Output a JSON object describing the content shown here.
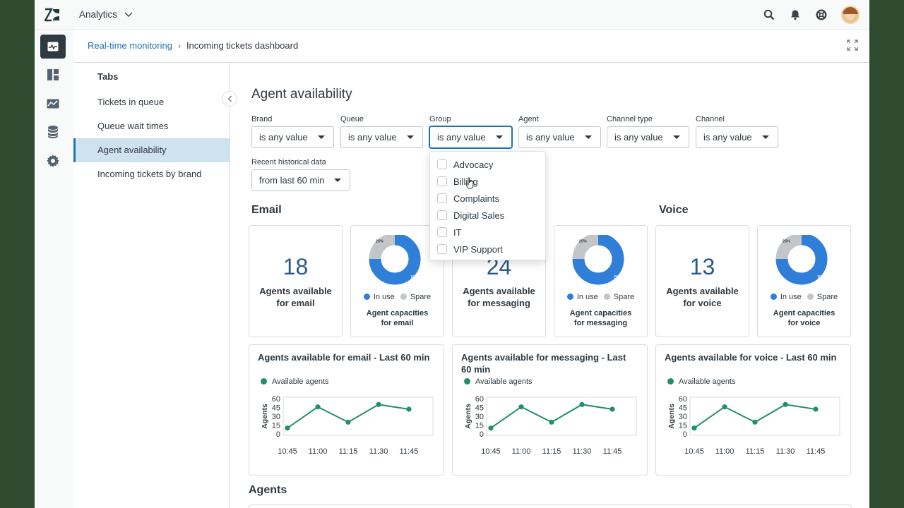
{
  "app": {
    "product_label": "Analytics"
  },
  "breadcrumb": {
    "parent": "Real-time monitoring",
    "current": "Incoming tickets dashboard"
  },
  "tabs": {
    "title": "Tabs",
    "items": [
      "Tickets in queue",
      "Queue wait times",
      "Agent availability",
      "Incoming tickets by brand"
    ],
    "active": "Agent availability"
  },
  "page": {
    "title": "Agent availability"
  },
  "filters": [
    {
      "label": "Brand",
      "value": "is any value"
    },
    {
      "label": "Queue",
      "value": "is any value"
    },
    {
      "label": "Group",
      "value": "is any value"
    },
    {
      "label": "Agent",
      "value": "is any value"
    },
    {
      "label": "Channel type",
      "value": "is any value"
    },
    {
      "label": "Channel",
      "value": "is any value"
    }
  ],
  "historical": {
    "label": "Recent historical data",
    "value": "from last 60 min"
  },
  "group_dropdown": {
    "options": [
      "Advocacy",
      "Billing",
      "Complaints",
      "Digital Sales",
      "IT",
      "VIP Support"
    ]
  },
  "sections": {
    "email": "Email",
    "voice": "Voice",
    "agents": "Agents"
  },
  "kpis": [
    {
      "value": "18",
      "label_line1": "Agents available",
      "label_line2": "for email"
    },
    {
      "value": "24",
      "label_line1": "Agents available",
      "label_line2": "for messaging"
    },
    {
      "value": "13",
      "label_line1": "Agents available",
      "label_line2": "for voice"
    }
  ],
  "donuts": [
    {
      "in_use_pct": "75%",
      "spare_pct": "25%",
      "cap_line1": "Agent capacities",
      "cap_line2": "for email"
    },
    {
      "in_use_pct": "75%",
      "spare_pct": "25%",
      "cap_line1": "Agent capacities",
      "cap_line2": "for messaging"
    },
    {
      "in_use_pct": "75%",
      "spare_pct": "25%",
      "cap_line1": "Agent capacities",
      "cap_line2": "for voice"
    }
  ],
  "donut_legend": {
    "in_use": "In use",
    "spare": "Spare"
  },
  "colors": {
    "in_use": "#2f7fd8",
    "spare": "#c2c6c9",
    "series": "#228f67",
    "accent": "#1f73b7"
  },
  "line_charts": {
    "legend": "Available agents",
    "ylabel": "Agents",
    "titles": [
      "Agents available for email - Last 60 min",
      "Agents available for messaging - Last 60 min",
      "Agents available for voice - Last 60 min"
    ]
  },
  "chart_data": [
    {
      "type": "pie",
      "categories": [
        "In use",
        "Spare"
      ],
      "values": [
        75,
        25
      ]
    },
    {
      "type": "pie",
      "categories": [
        "In use",
        "Spare"
      ],
      "values": [
        75,
        25
      ]
    },
    {
      "type": "pie",
      "categories": [
        "In use",
        "Spare"
      ],
      "values": [
        75,
        25
      ]
    },
    {
      "type": "line",
      "title": "Agents available for email - Last 60 min",
      "ylabel": "Agents",
      "x": [
        "10:45",
        "11:00",
        "11:15",
        "11:30",
        "11:45"
      ],
      "series": [
        {
          "name": "Available agents",
          "values": [
            10,
            46,
            20,
            50,
            42
          ]
        }
      ],
      "yticks": [
        0,
        15,
        30,
        45,
        60
      ],
      "ylim": [
        0,
        60
      ],
      "grid": false,
      "legend": "top-left"
    },
    {
      "type": "line",
      "title": "Agents available for messaging - Last 60 min",
      "ylabel": "Agents",
      "x": [
        "10:45",
        "11:00",
        "11:15",
        "11:30",
        "11:45"
      ],
      "series": [
        {
          "name": "Available agents",
          "values": [
            10,
            46,
            20,
            50,
            42
          ]
        }
      ],
      "yticks": [
        0,
        15,
        30,
        45,
        60
      ],
      "ylim": [
        0,
        60
      ],
      "grid": false,
      "legend": "top-left"
    },
    {
      "type": "line",
      "title": "Agents available for voice - Last 60 min",
      "ylabel": "Agents",
      "x": [
        "10:45",
        "11:00",
        "11:15",
        "11:30",
        "11:45"
      ],
      "series": [
        {
          "name": "Available agents",
          "values": [
            10,
            46,
            20,
            50,
            42
          ]
        }
      ],
      "yticks": [
        0,
        15,
        30,
        45,
        60
      ],
      "ylim": [
        0,
        60
      ],
      "grid": false,
      "legend": "top-left"
    }
  ]
}
